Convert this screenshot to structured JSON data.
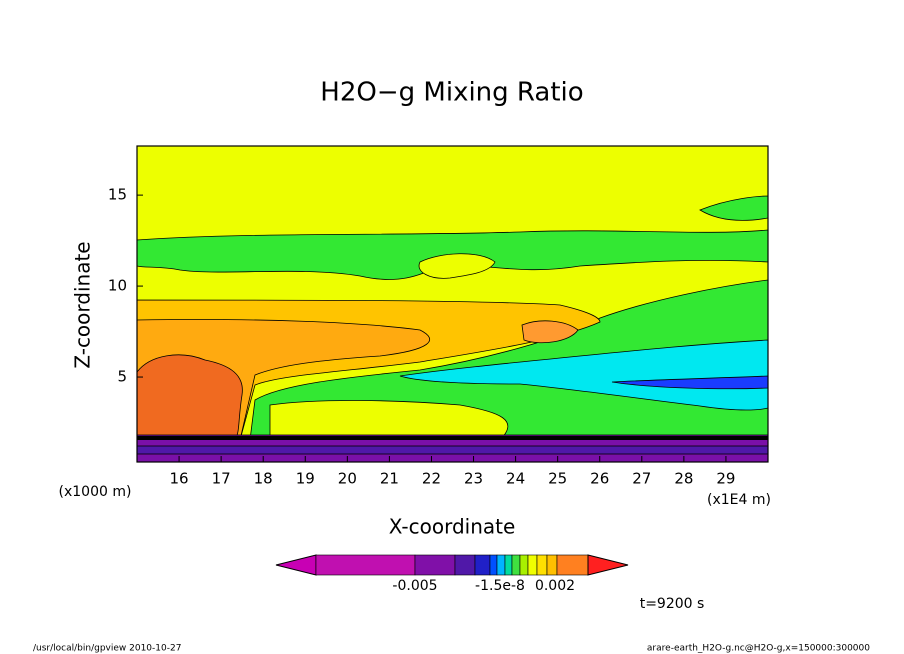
{
  "chart_data": {
    "type": "contour",
    "title": "H2O−g Mixing Ratio",
    "x_label": "X-coordinate",
    "y_label": "Z-coordinate",
    "x_unit": "(x1E4 m)",
    "y_unit": "(x1000 m)",
    "xlim": [
      15,
      30
    ],
    "xticks": [
      16,
      17,
      18,
      19,
      20,
      21,
      22,
      23,
      24,
      25,
      26,
      27,
      28,
      29
    ],
    "ylim": [
      0.33,
      17.7
    ],
    "yticks": [
      5,
      10,
      15
    ],
    "colorbar": {
      "colors": [
        "#c800b4",
        "#c010b0",
        "#8010a8",
        "#5018a8",
        "#2020c8",
        "#0050ff",
        "#00b4ff",
        "#00dca0",
        "#40e040",
        "#a8f000",
        "#f0ff00",
        "#ffe000",
        "#ffc000",
        "#ff8020",
        "#ff2020"
      ],
      "ticks": [
        -0.005,
        -1.5e-08,
        0.002
      ]
    },
    "time_label": "t=9200 s",
    "footer_left": "/usr/local/bin/gpview  2010-10-27",
    "footer_right": "arare-earth_H2O-g.nc@H2O-g,x=150000:300000"
  }
}
